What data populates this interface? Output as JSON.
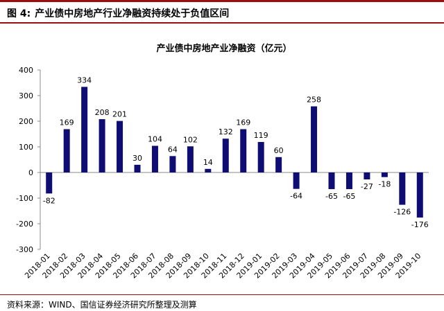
{
  "figure": {
    "label": "图 4:",
    "title": "产业债中房地产行业净融资持续处于负值区间",
    "source": "资料来源：WIND、国信证券经济研究所整理及测算"
  },
  "chart_data": {
    "type": "bar",
    "title": "产业债中房地产业净融资（亿元）",
    "xlabel": "",
    "ylabel": "",
    "ylim": [
      -300,
      400
    ],
    "yticks": [
      -300,
      -200,
      -100,
      0,
      100,
      200,
      300,
      400
    ],
    "grid": false,
    "legend": "none",
    "categories": [
      "2018-01",
      "2018-02",
      "2018-03",
      "2018-04",
      "2018-05",
      "2018-06",
      "2018-07",
      "2018-08",
      "2018-09",
      "2018-10",
      "2018-11",
      "2018-12",
      "2019-01",
      "2019-02",
      "2019-03",
      "2019-04",
      "2019-05",
      "2019-06",
      "2019-07",
      "2019-08",
      "2019-09",
      "2019-10"
    ],
    "values": [
      -82,
      169,
      334,
      208,
      201,
      30,
      104,
      64,
      102,
      14,
      132,
      169,
      119,
      60,
      -64,
      258,
      -65,
      -65,
      -27,
      -18,
      -126,
      -176
    ],
    "bar_color": "#0d0d73"
  }
}
